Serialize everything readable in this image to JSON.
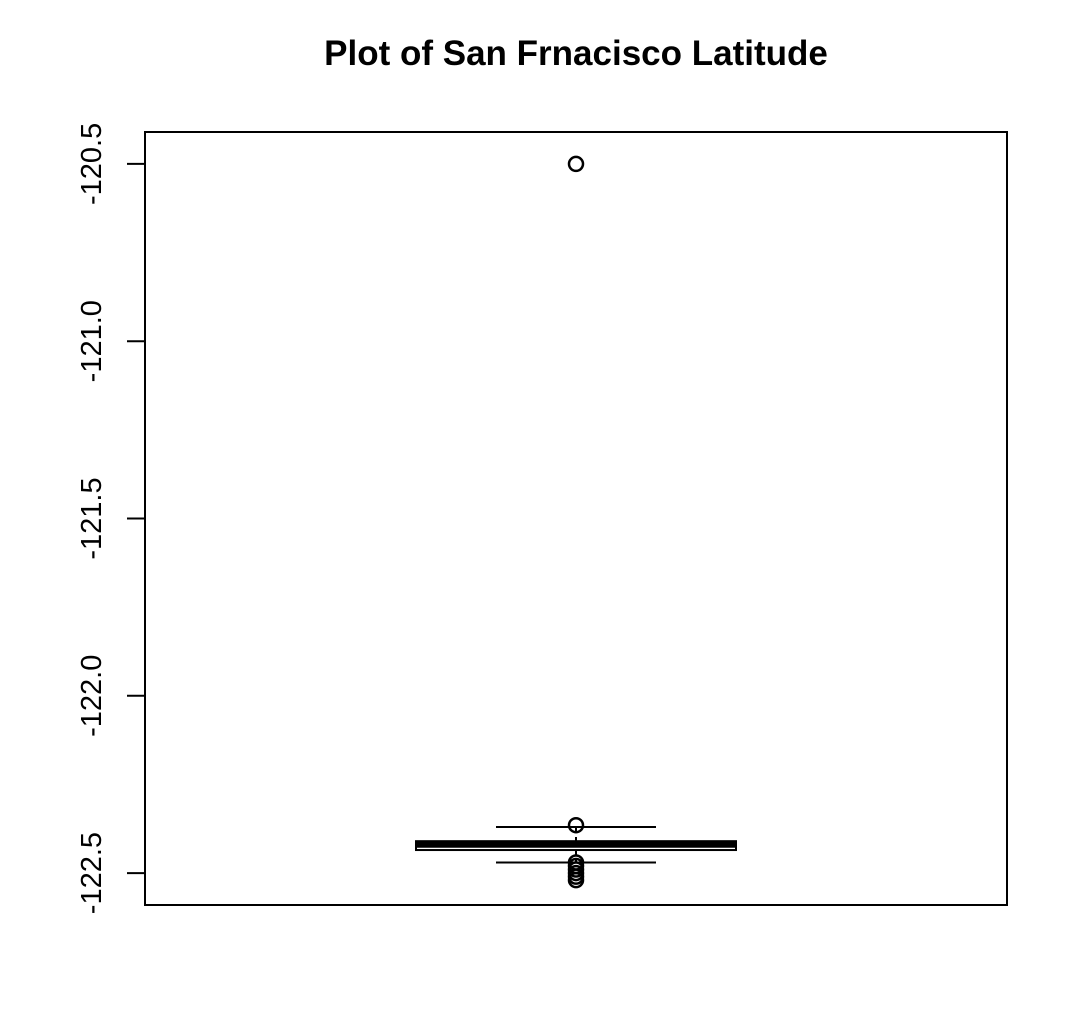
{
  "chart_data": {
    "type": "box",
    "title": "Plot of San Frnacisco Latitude",
    "xlabel": "",
    "ylabel": "",
    "ylim": [
      -122.59,
      -120.41
    ],
    "yticks": [
      -120.5,
      -121.0,
      -121.5,
      -122.0,
      -122.5
    ],
    "ytick_labels": [
      "-120.5",
      "-121.0",
      "-121.5",
      "-122.0",
      "-122.5"
    ],
    "grid": false,
    "box": {
      "lower_whisker": -122.47,
      "q1": -122.435,
      "median": -122.42,
      "q3": -122.41,
      "upper_whisker": -122.37
    },
    "outliers": [
      -120.5,
      -122.365,
      -122.47,
      -122.48,
      -122.49,
      -122.5,
      -122.51,
      -122.52
    ],
    "color": "#000000"
  }
}
